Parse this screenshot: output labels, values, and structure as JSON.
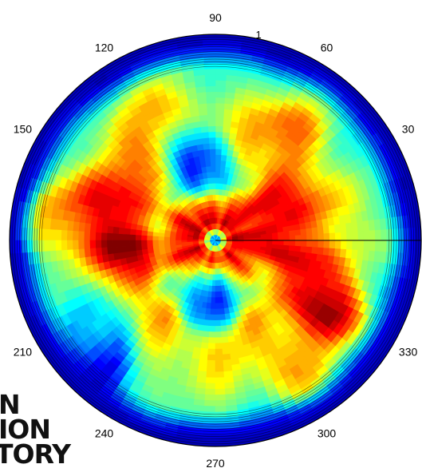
{
  "chart_data": {
    "type": "heatmap",
    "subtype": "polar-filled-contour",
    "title": "",
    "colormap": "jet",
    "colormap_stops": [
      "#00008f",
      "#0000ff",
      "#0080ff",
      "#00ffff",
      "#80ff80",
      "#ffff00",
      "#ff8000",
      "#ff0000",
      "#800000"
    ],
    "angle_ticks_deg": [
      "30",
      "60",
      "90",
      "120",
      "150",
      "210",
      "240",
      "270",
      "300",
      "330"
    ],
    "radial_ticks": [
      "1"
    ],
    "rlim": [
      0,
      1
    ],
    "grid": true,
    "contour_level_count": 40,
    "radial_profile": {
      "r": [
        0.0,
        0.08,
        0.2,
        0.3,
        0.42,
        0.55,
        0.7,
        0.82,
        0.9,
        0.96,
        1.0
      ],
      "value": [
        0.15,
        0.95,
        0.85,
        0.55,
        0.75,
        0.65,
        0.55,
        0.45,
        0.3,
        0.15,
        0.05
      ]
    },
    "features": [
      {
        "angle_deg": 190,
        "r": 0.45,
        "value": 0.96
      },
      {
        "angle_deg": 155,
        "r": 0.55,
        "value": 0.9
      },
      {
        "angle_deg": 20,
        "r": 0.3,
        "value": 0.92
      },
      {
        "angle_deg": 330,
        "r": 0.65,
        "value": 0.92
      },
      {
        "angle_deg": 100,
        "r": 0.38,
        "value": 0.15
      },
      {
        "angle_deg": 265,
        "r": 0.3,
        "value": 0.2
      },
      {
        "angle_deg": 215,
        "r": 0.7,
        "value": 0.3
      },
      {
        "angle_deg": 225,
        "r": 0.85,
        "value": 0.12
      },
      {
        "angle_deg": 55,
        "r": 0.62,
        "value": 0.78
      },
      {
        "angle_deg": 120,
        "r": 0.68,
        "value": 0.7
      },
      {
        "angle_deg": 175,
        "r": 0.85,
        "value": 0.72
      },
      {
        "angle_deg": 300,
        "r": 0.72,
        "value": 0.7
      },
      {
        "angle_deg": 345,
        "r": 0.45,
        "value": 0.82
      }
    ]
  },
  "watermark": {
    "lines": [
      "N",
      "ION",
      "TORY"
    ]
  }
}
